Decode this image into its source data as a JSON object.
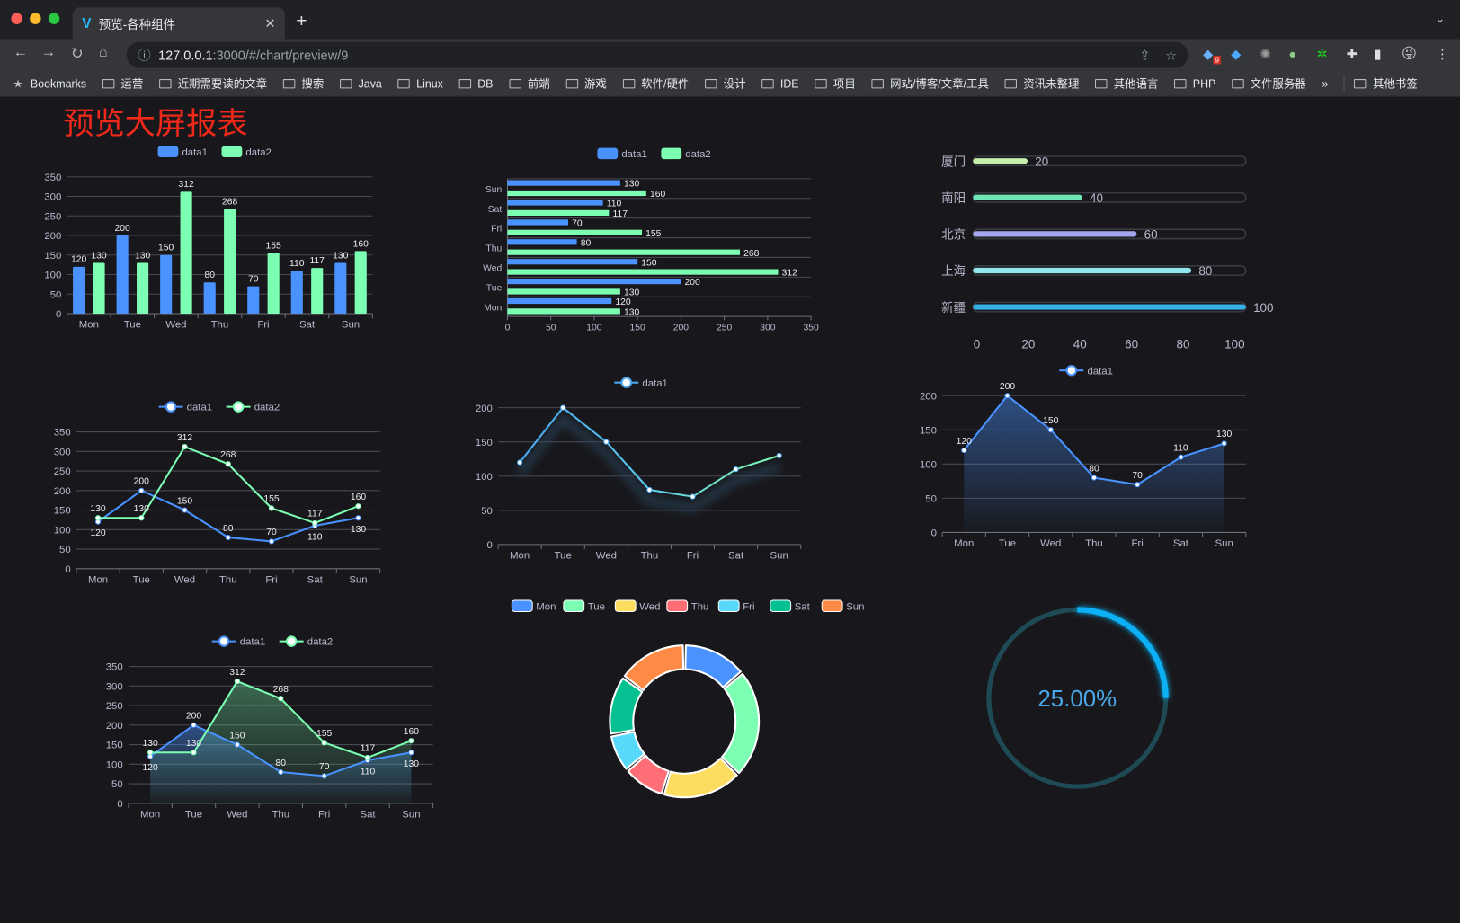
{
  "browser": {
    "tab_title": "预览-各种组件",
    "url_host": "127.0.0.1",
    "url_rest": ":3000/#/chart/preview/9",
    "extension_badge": "9",
    "bookmarks": [
      "Bookmarks",
      "运营",
      "近期需要读的文章",
      "搜索",
      "Java",
      "Linux",
      "DB",
      "前端",
      "游戏",
      "软件/硬件",
      "设计",
      "IDE",
      "项目",
      "网站/博客/文章/工具",
      "资讯未整理",
      "其他语言",
      "PHP",
      "文件服务器"
    ],
    "overflow": "»",
    "other_bookmarks": "其他书签"
  },
  "page": {
    "title": "预览大屏报表"
  },
  "colors": {
    "data1": "#4992ff",
    "data2": "#7cffb2",
    "title": "#f2291a",
    "gauge": "#0ab0f5",
    "gauge_track": "#1e4a56"
  },
  "chart_data": [
    {
      "type": "bar",
      "legend": [
        "data1",
        "data2"
      ],
      "categories": [
        "Mon",
        "Tue",
        "Wed",
        "Thu",
        "Fri",
        "Sat",
        "Sun"
      ],
      "series": [
        {
          "name": "data1",
          "values": [
            120,
            200,
            150,
            80,
            70,
            110,
            130
          ]
        },
        {
          "name": "data2",
          "values": [
            130,
            130,
            312,
            268,
            155,
            117,
            160
          ]
        }
      ],
      "ylim": [
        0,
        350
      ],
      "yticks": [
        0,
        50,
        100,
        150,
        200,
        250,
        300,
        350
      ]
    },
    {
      "type": "bar",
      "orientation": "horizontal",
      "legend": [
        "data1",
        "data2"
      ],
      "categories": [
        "Mon",
        "Tue",
        "Wed",
        "Thu",
        "Fri",
        "Sat",
        "Sun"
      ],
      "series": [
        {
          "name": "data1",
          "values": [
            120,
            200,
            150,
            80,
            70,
            110,
            130
          ]
        },
        {
          "name": "data2",
          "values": [
            130,
            130,
            312,
            268,
            155,
            117,
            160
          ]
        }
      ],
      "xlim": [
        0,
        350
      ],
      "xticks": [
        0,
        50,
        100,
        150,
        200,
        250,
        300,
        350
      ]
    },
    {
      "type": "bar",
      "orientation": "horizontal",
      "style": "progress",
      "categories": [
        "厦门",
        "南阳",
        "北京",
        "上海",
        "新疆"
      ],
      "values": [
        20,
        40,
        60,
        80,
        100
      ],
      "colors": [
        "#c5efa8",
        "#6ee6b6",
        "#a3a6ee",
        "#92e6ee",
        "#35b0e6"
      ],
      "xlim": [
        0,
        100
      ],
      "xticks": [
        0,
        20,
        40,
        60,
        80,
        100
      ]
    },
    {
      "type": "line",
      "legend": [
        "data1",
        "data2"
      ],
      "categories": [
        "Mon",
        "Tue",
        "Wed",
        "Thu",
        "Fri",
        "Sat",
        "Sun"
      ],
      "series": [
        {
          "name": "data1",
          "values": [
            120,
            200,
            150,
            80,
            70,
            110,
            130
          ]
        },
        {
          "name": "data2",
          "values": [
            130,
            130,
            312,
            268,
            155,
            117,
            160
          ]
        }
      ],
      "ylim": [
        0,
        350
      ],
      "yticks": [
        0,
        50,
        100,
        150,
        200,
        250,
        300,
        350
      ]
    },
    {
      "type": "line",
      "legend": [
        "data1"
      ],
      "categories": [
        "Mon",
        "Tue",
        "Wed",
        "Thu",
        "Fri",
        "Sat",
        "Sun"
      ],
      "series": [
        {
          "name": "data1",
          "values": [
            120,
            200,
            150,
            80,
            70,
            110,
            130
          ]
        }
      ],
      "ylim": [
        0,
        200
      ],
      "yticks": [
        0,
        50,
        100,
        150,
        200
      ]
    },
    {
      "type": "area",
      "legend": [
        "data1"
      ],
      "categories": [
        "Mon",
        "Tue",
        "Wed",
        "Thu",
        "Fri",
        "Sat",
        "Sun"
      ],
      "series": [
        {
          "name": "data1",
          "values": [
            120,
            200,
            150,
            80,
            70,
            110,
            130
          ]
        }
      ],
      "ylim": [
        0,
        200
      ],
      "yticks": [
        0,
        50,
        100,
        150,
        200
      ]
    },
    {
      "type": "area",
      "legend": [
        "data1",
        "data2"
      ],
      "categories": [
        "Mon",
        "Tue",
        "Wed",
        "Thu",
        "Fri",
        "Sat",
        "Sun"
      ],
      "series": [
        {
          "name": "data1",
          "values": [
            120,
            200,
            150,
            80,
            70,
            110,
            130
          ]
        },
        {
          "name": "data2",
          "values": [
            130,
            130,
            312,
            268,
            155,
            117,
            160
          ]
        }
      ],
      "ylim": [
        0,
        350
      ],
      "yticks": [
        0,
        50,
        100,
        150,
        200,
        250,
        300,
        350
      ]
    },
    {
      "type": "pie",
      "style": "donut",
      "legend": [
        "Mon",
        "Tue",
        "Wed",
        "Thu",
        "Fri",
        "Sat",
        "Sun"
      ],
      "values": [
        120,
        200,
        150,
        80,
        70,
        110,
        130
      ],
      "colors": [
        "#4992ff",
        "#7cffb2",
        "#fddd60",
        "#ff6e76",
        "#58d9f9",
        "#05c091",
        "#ff8a45"
      ]
    },
    {
      "type": "gauge",
      "value": 25,
      "label": "25.00%"
    }
  ]
}
